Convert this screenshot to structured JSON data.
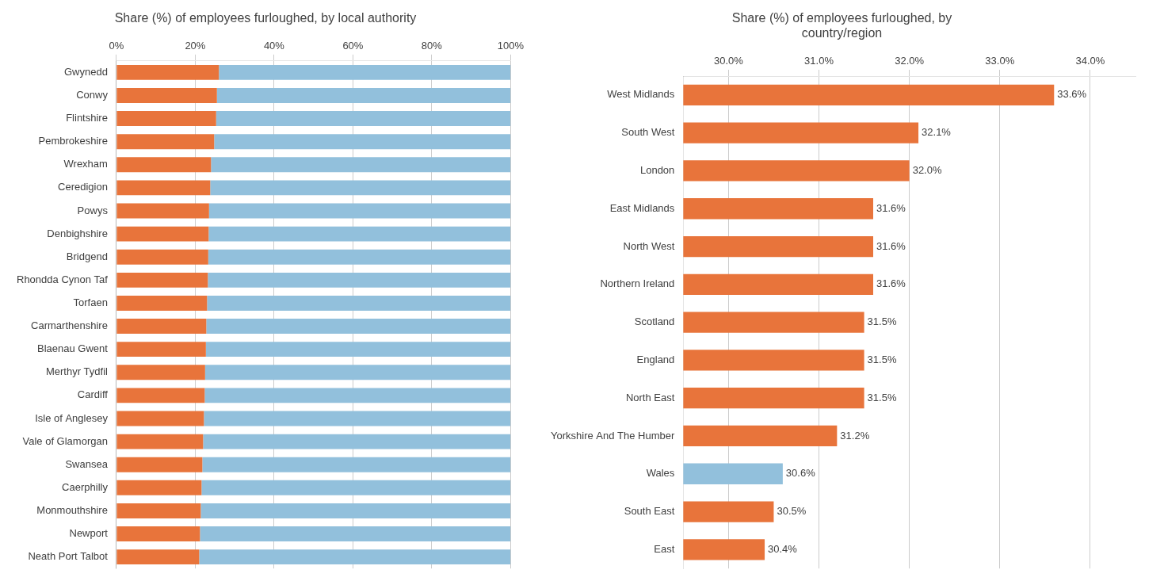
{
  "chart_data": [
    {
      "type": "bar",
      "title": "Share (%) of employees furloughed, by local authority",
      "orientation": "horizontal",
      "stacked": true,
      "categories": [
        "Gwynedd",
        "Conwy",
        "Flintshire",
        "Pembrokeshire",
        "Wrexham",
        "Ceredigion",
        "Powys",
        "Denbighshire",
        "Bridgend",
        "Rhondda Cynon Taf",
        "Torfaen",
        "Carmarthenshire",
        "Blaenau Gwent",
        "Merthyr Tydfil",
        "Cardiff",
        "Isle of Anglesey",
        "Vale of Glamorgan",
        "Swansea",
        "Caerphilly",
        "Monmouthshire",
        "Newport",
        "Neath Port Talbot"
      ],
      "series": [
        {
          "color": "#E8743B",
          "values": [
            26.0,
            25.5,
            25.3,
            24.8,
            24.0,
            23.8,
            23.5,
            23.4,
            23.3,
            23.2,
            23.0,
            22.8,
            22.7,
            22.5,
            22.4,
            22.2,
            22.0,
            21.8,
            21.6,
            21.4,
            21.2,
            21.0
          ]
        },
        {
          "color": "#92C0DC",
          "values": [
            74.0,
            74.5,
            74.7,
            75.2,
            76.0,
            76.2,
            76.5,
            76.6,
            76.7,
            76.8,
            77.0,
            77.2,
            77.3,
            77.5,
            77.6,
            77.8,
            78.0,
            78.2,
            78.4,
            78.6,
            78.8,
            79.0
          ]
        }
      ],
      "xlim": [
        0,
        100
      ],
      "xticks": [
        {
          "value": 0,
          "label": "0%"
        },
        {
          "value": 20,
          "label": "20%"
        },
        {
          "value": 40,
          "label": "40%"
        },
        {
          "value": 60,
          "label": "60%"
        },
        {
          "value": 80,
          "label": "80%"
        },
        {
          "value": 100,
          "label": "100%"
        }
      ],
      "grid": true
    },
    {
      "type": "bar",
      "title": "Share (%) of employees furloughed, by\ncountry/region",
      "orientation": "horizontal",
      "categories": [
        "West Midlands",
        "South West",
        "London",
        "East Midlands",
        "North West",
        "Northern Ireland",
        "Scotland",
        "England",
        "North East",
        "Yorkshire And The Humber",
        "Wales",
        "South East",
        "East"
      ],
      "values": [
        33.6,
        32.1,
        32.0,
        31.6,
        31.6,
        31.6,
        31.5,
        31.5,
        31.5,
        31.2,
        30.6,
        30.5,
        30.4
      ],
      "value_labels": [
        "33.6%",
        "32.1%",
        "32.0%",
        "31.6%",
        "31.6%",
        "31.6%",
        "31.5%",
        "31.5%",
        "31.5%",
        "31.2%",
        "30.6%",
        "30.5%",
        "30.4%"
      ],
      "data_labels": true,
      "colors": [
        "#E8743B",
        "#E8743B",
        "#E8743B",
        "#E8743B",
        "#E8743B",
        "#E8743B",
        "#E8743B",
        "#E8743B",
        "#E8743B",
        "#E8743B",
        "#92C0DC",
        "#E8743B",
        "#E8743B"
      ],
      "xlim": [
        29.5,
        34.5
      ],
      "xticks": [
        {
          "value": 30.0,
          "label": "30.0%"
        },
        {
          "value": 31.0,
          "label": "31.0%"
        },
        {
          "value": 32.0,
          "label": "32.0%"
        },
        {
          "value": 33.0,
          "label": "33.0%"
        },
        {
          "value": 34.0,
          "label": "34.0%"
        }
      ],
      "grid": true
    }
  ]
}
